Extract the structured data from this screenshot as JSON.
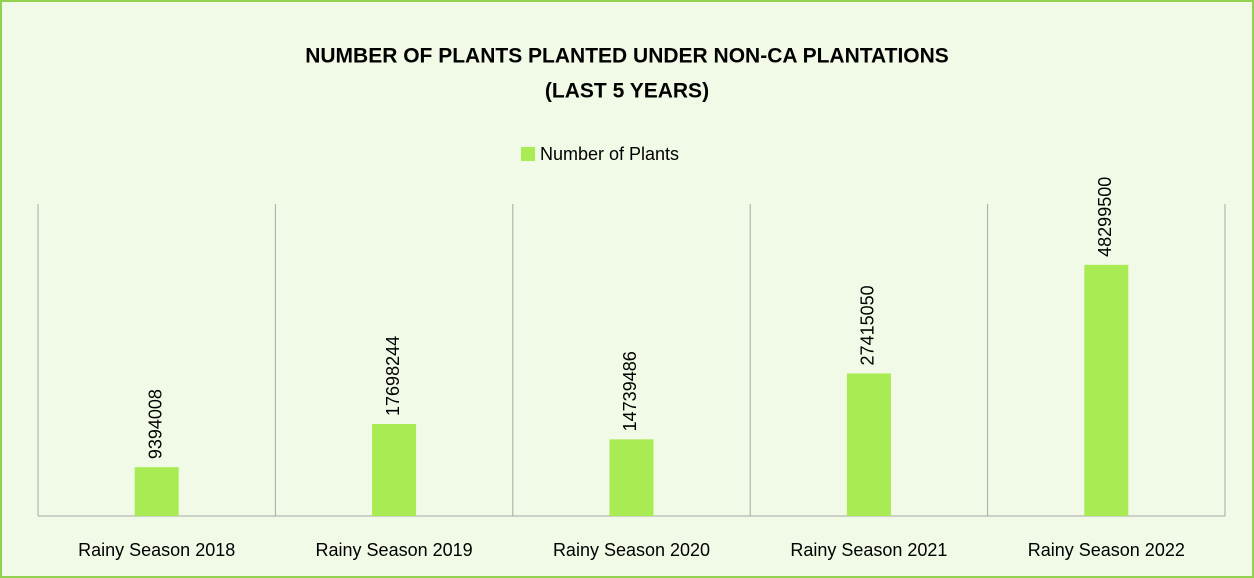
{
  "chart_data": {
    "type": "bar",
    "title": [
      "NUMBER OF PLANTS PLANTED UNDER NON-CA PLANTATIONS",
      "(LAST 5 YEARS)"
    ],
    "categories": [
      "Rainy Season 2018",
      "Rainy Season 2019",
      "Rainy Season 2020",
      "Rainy Season 2021",
      "Rainy Season 2022"
    ],
    "series": [
      {
        "name": "Number of Plants",
        "color": "#a9eb52",
        "values": [
          9394008,
          17698244,
          14739486,
          27415050,
          48299500
        ]
      }
    ],
    "ylim": [
      0,
      60000000
    ],
    "legend": "top"
  }
}
